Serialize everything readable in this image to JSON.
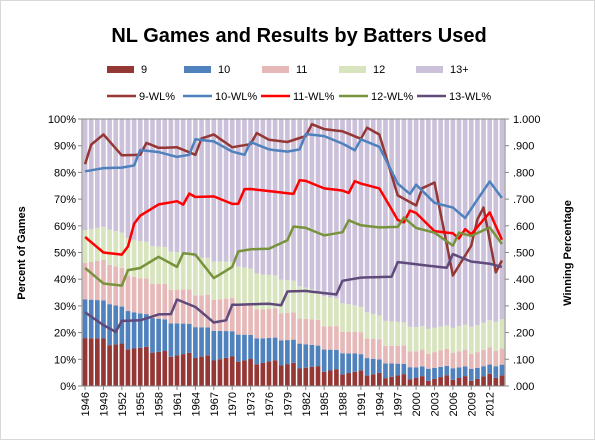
{
  "chart_data": {
    "type": "bar",
    "title": "NL Games and Results by Batters Used",
    "ylabel_left": "Percent of Games",
    "ylabel_right": "Winning Percentage",
    "ylim_left": [
      0,
      100
    ],
    "ylim_right": [
      0,
      1
    ],
    "y_ticks_left": [
      "0%",
      "10%",
      "20%",
      "30%",
      "40%",
      "50%",
      "60%",
      "70%",
      "80%",
      "90%",
      "100%"
    ],
    "y_ticks_right": [
      ".000",
      ".100",
      ".200",
      ".300",
      ".400",
      ".500",
      ".600",
      ".700",
      ".800",
      ".900",
      "1.000"
    ],
    "x_tick_labels": [
      "1946",
      "1949",
      "1952",
      "1955",
      "1958",
      "1961",
      "1964",
      "1967",
      "1970",
      "1973",
      "1976",
      "1979",
      "1982",
      "1985",
      "1988",
      "1991",
      "1994",
      "1997",
      "2000",
      "2003",
      "2006",
      "2009",
      "2012"
    ],
    "x_first_year": 1946,
    "x_last_year": 2014,
    "legend_bars": [
      {
        "name": "9",
        "color": "#953735"
      },
      {
        "name": "10",
        "color": "#4f81bd"
      },
      {
        "name": "11",
        "color": "#e6b9b8"
      },
      {
        "name": "12",
        "color": "#d7e4bd"
      },
      {
        "name": "13+",
        "color": "#ccc1da"
      }
    ],
    "legend_lines": [
      {
        "name": "9-WL%",
        "color": "#953735"
      },
      {
        "name": "10-WL%",
        "color": "#4f81bd"
      },
      {
        "name": "11-WL%",
        "color": "#ff0000"
      },
      {
        "name": "12-WL%",
        "color": "#77933c"
      },
      {
        "name": "13-WL%",
        "color": "#604a7b"
      }
    ],
    "stack_keys": [
      {
        "year": 1946,
        "p9": 19,
        "p10": 14,
        "p11": 14,
        "p12": 12
      },
      {
        "year": 1950,
        "p9": 16,
        "p10": 15,
        "p11": 15,
        "p12": 13
      },
      {
        "year": 1955,
        "p9": 14,
        "p10": 13,
        "p11": 13,
        "p12": 14
      },
      {
        "year": 1960,
        "p9": 12,
        "p10": 12,
        "p11": 13,
        "p12": 14
      },
      {
        "year": 1965,
        "p9": 11,
        "p10": 11,
        "p11": 12,
        "p12": 14
      },
      {
        "year": 1970,
        "p9": 10,
        "p10": 10,
        "p11": 12,
        "p12": 14
      },
      {
        "year": 1975,
        "p9": 9,
        "p10": 9,
        "p11": 11,
        "p12": 13
      },
      {
        "year": 1980,
        "p9": 8,
        "p10": 9,
        "p11": 10,
        "p12": 12
      },
      {
        "year": 1985,
        "p9": 6,
        "p10": 8,
        "p11": 9,
        "p12": 11
      },
      {
        "year": 1990,
        "p9": 5,
        "p10": 7,
        "p11": 8,
        "p12": 10
      },
      {
        "year": 1995,
        "p9": 4,
        "p10": 5,
        "p11": 7,
        "p12": 9
      },
      {
        "year": 2000,
        "p9": 3,
        "p10": 4,
        "p11": 6,
        "p12": 9
      },
      {
        "year": 2005,
        "p9": 3,
        "p10": 4,
        "p11": 6,
        "p12": 9
      },
      {
        "year": 2010,
        "p9": 3,
        "p10": 4,
        "p11": 6,
        "p12": 10
      },
      {
        "year": 2014,
        "p9": 4,
        "p10": 4,
        "p11": 6,
        "p12": 11
      }
    ],
    "wl_keys": {
      "9-WL%": [
        [
          1946,
          0.855
        ],
        [
          1949,
          0.93
        ],
        [
          1952,
          0.87
        ],
        [
          1955,
          0.89
        ],
        [
          1958,
          0.88
        ],
        [
          1961,
          0.9
        ],
        [
          1964,
          0.89
        ],
        [
          1967,
          0.93
        ],
        [
          1970,
          0.9
        ],
        [
          1973,
          0.93
        ],
        [
          1976,
          0.91
        ],
        [
          1979,
          0.92
        ],
        [
          1982,
          0.96
        ],
        [
          1985,
          0.95
        ],
        [
          1988,
          0.96
        ],
        [
          1991,
          0.95
        ],
        [
          1994,
          0.93
        ],
        [
          1995,
          0.86
        ],
        [
          1997,
          0.72
        ],
        [
          2000,
          0.7
        ],
        [
          2003,
          0.75
        ],
        [
          2006,
          0.42
        ],
        [
          2009,
          0.55
        ],
        [
          2011,
          0.65
        ],
        [
          2013,
          0.42
        ],
        [
          2014,
          0.47
        ]
      ],
      "10-WL%": [
        [
          1946,
          0.78
        ],
        [
          1949,
          0.81
        ],
        [
          1952,
          0.83
        ],
        [
          1955,
          0.86
        ],
        [
          1958,
          0.87
        ],
        [
          1961,
          0.87
        ],
        [
          1964,
          0.9
        ],
        [
          1967,
          0.91
        ],
        [
          1970,
          0.89
        ],
        [
          1973,
          0.89
        ],
        [
          1976,
          0.88
        ],
        [
          1979,
          0.89
        ],
        [
          1982,
          0.92
        ],
        [
          1985,
          0.93
        ],
        [
          1988,
          0.92
        ],
        [
          1991,
          0.9
        ],
        [
          1994,
          0.89
        ],
        [
          1997,
          0.77
        ],
        [
          2000,
          0.73
        ],
        [
          2003,
          0.68
        ],
        [
          2006,
          0.68
        ],
        [
          2009,
          0.64
        ],
        [
          2012,
          0.76
        ],
        [
          2014,
          0.71
        ]
      ],
      "11-WL%": [
        [
          1946,
          0.54
        ],
        [
          1949,
          0.5
        ],
        [
          1952,
          0.51
        ],
        [
          1955,
          0.62
        ],
        [
          1958,
          0.68
        ],
        [
          1961,
          0.71
        ],
        [
          1964,
          0.69
        ],
        [
          1967,
          0.71
        ],
        [
          1970,
          0.7
        ],
        [
          1973,
          0.72
        ],
        [
          1976,
          0.73
        ],
        [
          1979,
          0.74
        ],
        [
          1982,
          0.75
        ],
        [
          1985,
          0.74
        ],
        [
          1988,
          0.75
        ],
        [
          1991,
          0.74
        ],
        [
          1994,
          0.74
        ],
        [
          1997,
          0.64
        ],
        [
          2000,
          0.63
        ],
        [
          2003,
          0.58
        ],
        [
          2006,
          0.59
        ],
        [
          2009,
          0.55
        ],
        [
          2012,
          0.65
        ],
        [
          2014,
          0.56
        ]
      ],
      "12-WL%": [
        [
          1946,
          0.43
        ],
        [
          1949,
          0.39
        ],
        [
          1952,
          0.4
        ],
        [
          1955,
          0.43
        ],
        [
          1958,
          0.49
        ],
        [
          1961,
          0.47
        ],
        [
          1964,
          0.48
        ],
        [
          1967,
          0.41
        ],
        [
          1970,
          0.47
        ],
        [
          1973,
          0.5
        ],
        [
          1976,
          0.52
        ],
        [
          1979,
          0.57
        ],
        [
          1982,
          0.58
        ],
        [
          1985,
          0.57
        ],
        [
          1988,
          0.6
        ],
        [
          1991,
          0.59
        ],
        [
          1994,
          0.6
        ],
        [
          1997,
          0.62
        ],
        [
          2000,
          0.58
        ],
        [
          2003,
          0.58
        ],
        [
          2006,
          0.55
        ],
        [
          2009,
          0.55
        ],
        [
          2012,
          0.6
        ],
        [
          2014,
          0.55
        ]
      ],
      "13-WL%": [
        [
          1946,
          0.27
        ],
        [
          1949,
          0.24
        ],
        [
          1952,
          0.22
        ],
        [
          1955,
          0.24
        ],
        [
          1958,
          0.28
        ],
        [
          1961,
          0.3
        ],
        [
          1964,
          0.29
        ],
        [
          1967,
          0.25
        ],
        [
          1970,
          0.28
        ],
        [
          1973,
          0.3
        ],
        [
          1976,
          0.32
        ],
        [
          1979,
          0.33
        ],
        [
          1982,
          0.35
        ],
        [
          1985,
          0.36
        ],
        [
          1988,
          0.37
        ],
        [
          1991,
          0.4
        ],
        [
          1994,
          0.42
        ],
        [
          1997,
          0.44
        ],
        [
          2000,
          0.45
        ],
        [
          2003,
          0.46
        ],
        [
          2006,
          0.47
        ],
        [
          2009,
          0.46
        ],
        [
          2012,
          0.47
        ],
        [
          2014,
          0.47
        ]
      ]
    }
  }
}
